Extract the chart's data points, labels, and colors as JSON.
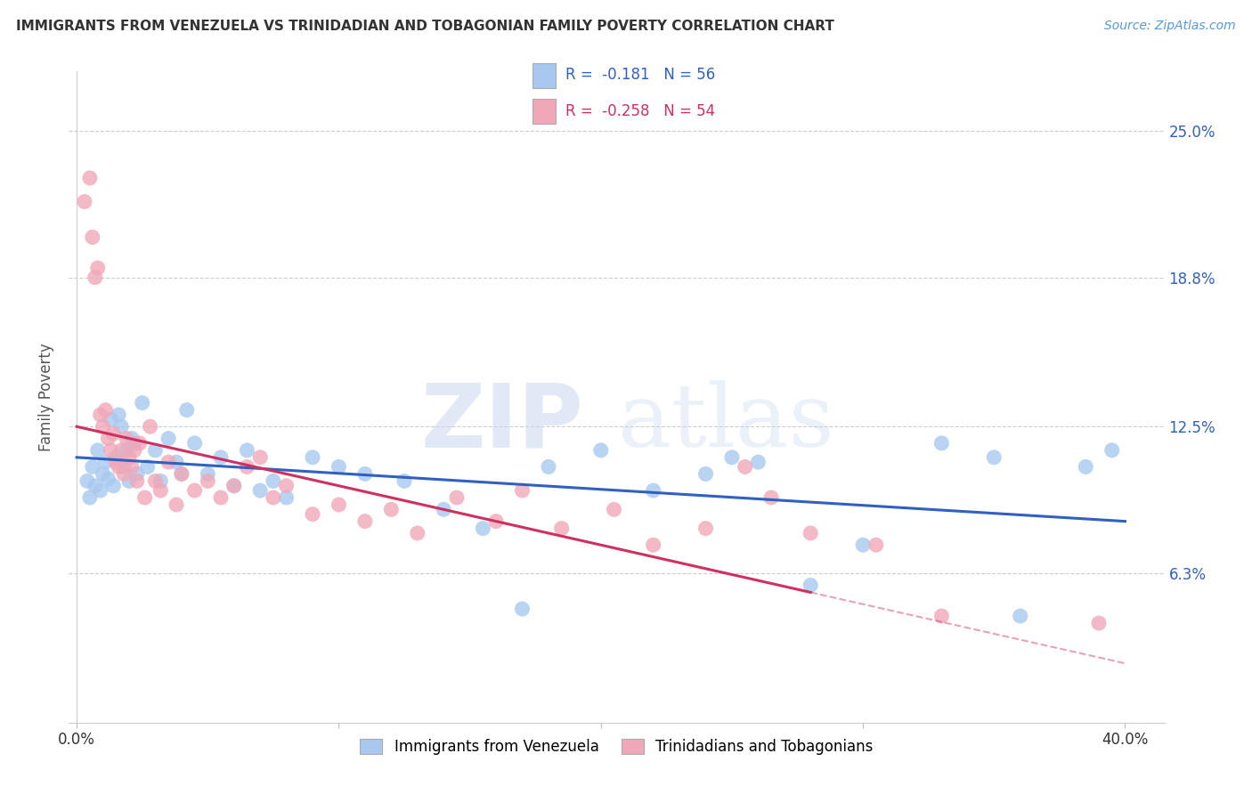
{
  "title": "IMMIGRANTS FROM VENEZUELA VS TRINIDADIAN AND TOBAGONIAN FAMILY POVERTY CORRELATION CHART",
  "source": "Source: ZipAtlas.com",
  "ylabel": "Family Poverty",
  "ytick_values": [
    6.3,
    12.5,
    18.8,
    25.0
  ],
  "ytick_labels": [
    "6.3%",
    "12.5%",
    "18.8%",
    "25.0%"
  ],
  "xlim": [
    0.0,
    40.0
  ],
  "ylim": [
    0.0,
    27.0
  ],
  "legend1_label": "Immigrants from Venezuela",
  "legend2_label": "Trinidadians and Tobagonians",
  "r1": "-0.181",
  "n1": "56",
  "r2": "-0.258",
  "n2": "54",
  "blue_color": "#a8c8f0",
  "pink_color": "#f0a8b8",
  "blue_line_color": "#3060c0",
  "pink_line_color": "#d03060",
  "blue_x": [
    0.4,
    0.5,
    0.6,
    0.7,
    0.8,
    0.9,
    1.0,
    1.1,
    1.2,
    1.3,
    1.4,
    1.5,
    1.6,
    1.7,
    1.8,
    1.9,
    2.0,
    2.1,
    2.2,
    2.3,
    2.5,
    2.7,
    3.0,
    3.2,
    3.5,
    3.8,
    4.0,
    4.2,
    4.5,
    5.0,
    5.5,
    6.0,
    6.5,
    7.0,
    7.5,
    8.0,
    9.0,
    10.0,
    11.0,
    12.5,
    14.0,
    15.5,
    17.0,
    18.0,
    20.0,
    22.0,
    24.0,
    25.0,
    26.0,
    28.0,
    30.0,
    33.0,
    35.0,
    36.0,
    38.5,
    39.5
  ],
  "blue_y": [
    10.2,
    9.5,
    10.8,
    10.0,
    11.5,
    9.8,
    10.5,
    11.0,
    10.3,
    12.8,
    10.0,
    11.2,
    13.0,
    12.5,
    10.8,
    11.5,
    10.2,
    12.0,
    11.8,
    10.5,
    13.5,
    10.8,
    11.5,
    10.2,
    12.0,
    11.0,
    10.5,
    13.2,
    11.8,
    10.5,
    11.2,
    10.0,
    11.5,
    9.8,
    10.2,
    9.5,
    11.2,
    10.8,
    10.5,
    10.2,
    9.0,
    8.2,
    4.8,
    10.8,
    11.5,
    9.8,
    10.5,
    11.2,
    11.0,
    5.8,
    7.5,
    11.8,
    11.2,
    4.5,
    10.8,
    11.5
  ],
  "pink_x": [
    0.3,
    0.5,
    0.6,
    0.7,
    0.8,
    0.9,
    1.0,
    1.1,
    1.2,
    1.3,
    1.4,
    1.5,
    1.6,
    1.7,
    1.8,
    1.9,
    2.0,
    2.1,
    2.2,
    2.3,
    2.4,
    2.6,
    2.8,
    3.0,
    3.2,
    3.5,
    3.8,
    4.0,
    4.5,
    5.0,
    5.5,
    6.0,
    6.5,
    7.0,
    7.5,
    8.0,
    9.0,
    10.0,
    11.0,
    12.0,
    13.0,
    14.5,
    16.0,
    17.0,
    18.5,
    20.5,
    22.0,
    24.0,
    25.5,
    26.5,
    28.0,
    30.5,
    33.0,
    39.0
  ],
  "pink_y": [
    22.0,
    23.0,
    20.5,
    18.8,
    19.2,
    13.0,
    12.5,
    13.2,
    12.0,
    11.5,
    12.2,
    11.0,
    10.8,
    11.5,
    10.5,
    12.0,
    11.2,
    10.8,
    11.5,
    10.2,
    11.8,
    9.5,
    12.5,
    10.2,
    9.8,
    11.0,
    9.2,
    10.5,
    9.8,
    10.2,
    9.5,
    10.0,
    10.8,
    11.2,
    9.5,
    10.0,
    8.8,
    9.2,
    8.5,
    9.0,
    8.0,
    9.5,
    8.5,
    9.8,
    8.2,
    9.0,
    7.5,
    8.2,
    10.8,
    9.5,
    8.0,
    7.5,
    4.5,
    4.2
  ],
  "pink_solid_xmax": 28.0,
  "blue_line_x0": 0.0,
  "blue_line_x1": 40.0,
  "blue_line_y0": 11.2,
  "blue_line_y1": 8.5,
  "pink_line_x0": 0.0,
  "pink_line_x1": 40.0,
  "pink_line_y0": 12.5,
  "pink_line_y1": 2.5
}
